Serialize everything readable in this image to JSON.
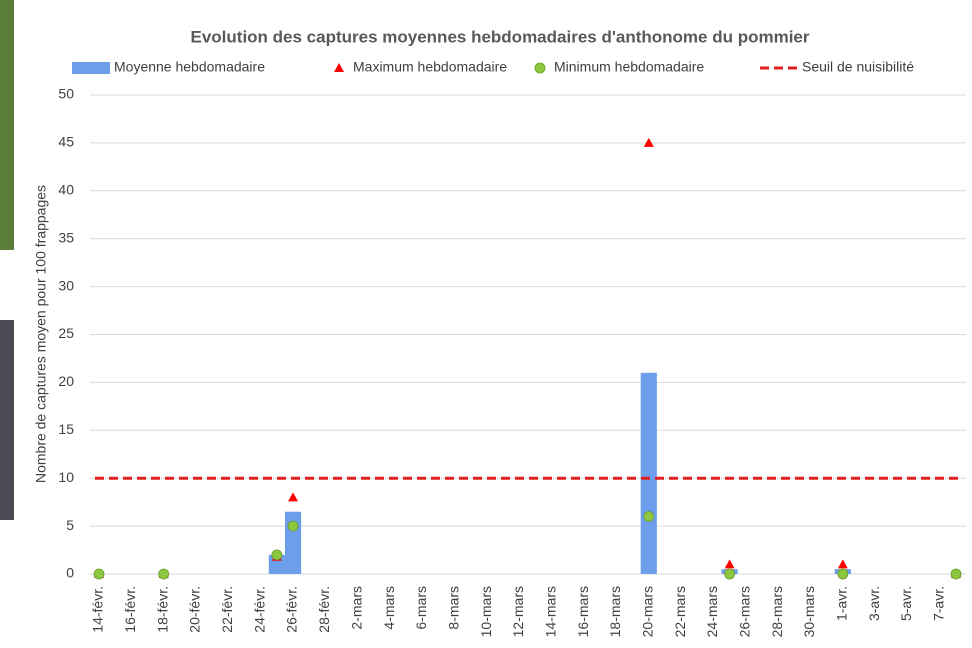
{
  "chart_data": {
    "type": "bar",
    "title": "Evolution des captures moyennes hebdomadaires d'anthonome du pommier",
    "y_label": "Nombre de captures moyen pour 100 frappages",
    "categories": [
      "14-févr.",
      null,
      "16-févr.",
      null,
      "18-févr.",
      null,
      "20-févr.",
      null,
      "22-févr.",
      null,
      "24-févr.",
      null,
      "26-févr.",
      null,
      "28-févr.",
      null,
      "2-mars",
      null,
      "4-mars",
      null,
      "6-mars",
      null,
      "8-mars",
      null,
      "10-mars",
      null,
      "12-mars",
      null,
      "14-mars",
      null,
      "16-mars",
      null,
      "18-mars",
      null,
      "20-mars",
      null,
      "22-mars",
      null,
      "24-mars",
      null,
      "26-mars",
      null,
      "28-mars",
      null,
      "30-mars",
      null,
      "1-avr.",
      null,
      "3-avr.",
      null,
      "5-avr.",
      null,
      "7-avr.",
      null
    ],
    "series": [
      {
        "name": "Moyenne hebdomadaire",
        "kind": "bar",
        "color": "#6d9eeb",
        "values": [
          0,
          null,
          null,
          null,
          0,
          null,
          null,
          null,
          null,
          null,
          null,
          2,
          6.5,
          null,
          null,
          null,
          null,
          null,
          null,
          null,
          null,
          null,
          null,
          null,
          null,
          null,
          null,
          null,
          null,
          null,
          null,
          null,
          null,
          null,
          21,
          null,
          null,
          null,
          null,
          0.5,
          null,
          null,
          null,
          null,
          null,
          null,
          0.5,
          null,
          null,
          null,
          null,
          null,
          null,
          0
        ]
      },
      {
        "name": "Maximum hebdomadaire",
        "kind": "triangle",
        "color": "#ff0000",
        "values": [
          0,
          null,
          null,
          null,
          0,
          null,
          null,
          null,
          null,
          null,
          null,
          1.8,
          8,
          null,
          null,
          null,
          null,
          null,
          null,
          null,
          null,
          null,
          null,
          null,
          null,
          null,
          null,
          null,
          null,
          null,
          null,
          null,
          null,
          null,
          45,
          null,
          null,
          null,
          null,
          1,
          null,
          null,
          null,
          null,
          null,
          null,
          1,
          null,
          null,
          null,
          null,
          null,
          null,
          0
        ]
      },
      {
        "name": "Minimum hebdomadaire",
        "kind": "circle",
        "color": "#8dc63f",
        "values": [
          0,
          null,
          null,
          null,
          0,
          null,
          null,
          null,
          null,
          null,
          null,
          2,
          5,
          null,
          null,
          null,
          null,
          null,
          null,
          null,
          null,
          null,
          null,
          null,
          null,
          null,
          null,
          null,
          null,
          null,
          null,
          null,
          null,
          null,
          6,
          null,
          null,
          null,
          null,
          0,
          null,
          null,
          null,
          null,
          null,
          null,
          0,
          null,
          null,
          null,
          null,
          null,
          null,
          0
        ]
      },
      {
        "name": "Seuil de nuisibilité",
        "kind": "threshold",
        "color": "#e02020",
        "value": 10
      }
    ],
    "ylim": [
      0,
      50
    ],
    "yticks": [
      0,
      5,
      10,
      15,
      20,
      25,
      30,
      35,
      40,
      45,
      50
    ],
    "grid": true
  }
}
